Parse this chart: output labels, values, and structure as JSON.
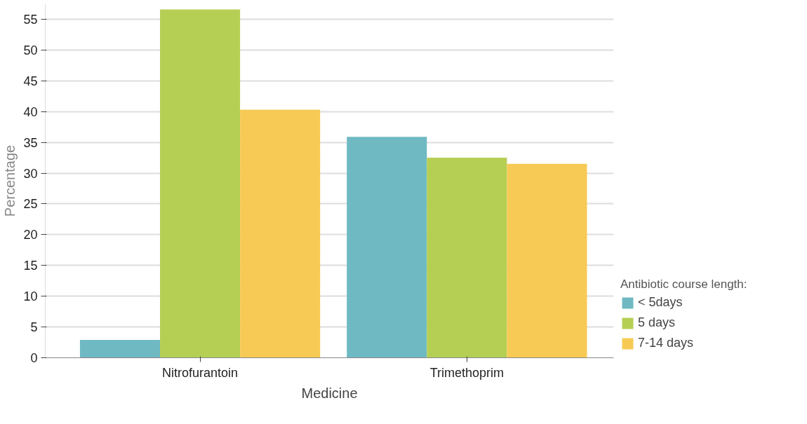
{
  "chart_data": {
    "type": "bar",
    "xlabel": "Medicine",
    "ylabel": "Percentage",
    "legend_title": "Antibiotic course length:",
    "categories": [
      "Nitrofurantoin",
      "Trimethoprim"
    ],
    "series": [
      {
        "name": "< 5days",
        "color": "#6fb9c3",
        "values": [
          2.9,
          35.9
        ]
      },
      {
        "name": "5 days",
        "color": "#b5cf55",
        "values": [
          56.6,
          32.5
        ]
      },
      {
        "name": "7-14 days",
        "color": "#f6ca55",
        "values": [
          40.3,
          31.5
        ]
      }
    ],
    "ylim": [
      0,
      57.5
    ],
    "yticks": [
      0,
      5,
      10,
      15,
      20,
      25,
      30,
      35,
      40,
      45,
      50,
      55
    ],
    "grid": "y",
    "legend": "right"
  }
}
